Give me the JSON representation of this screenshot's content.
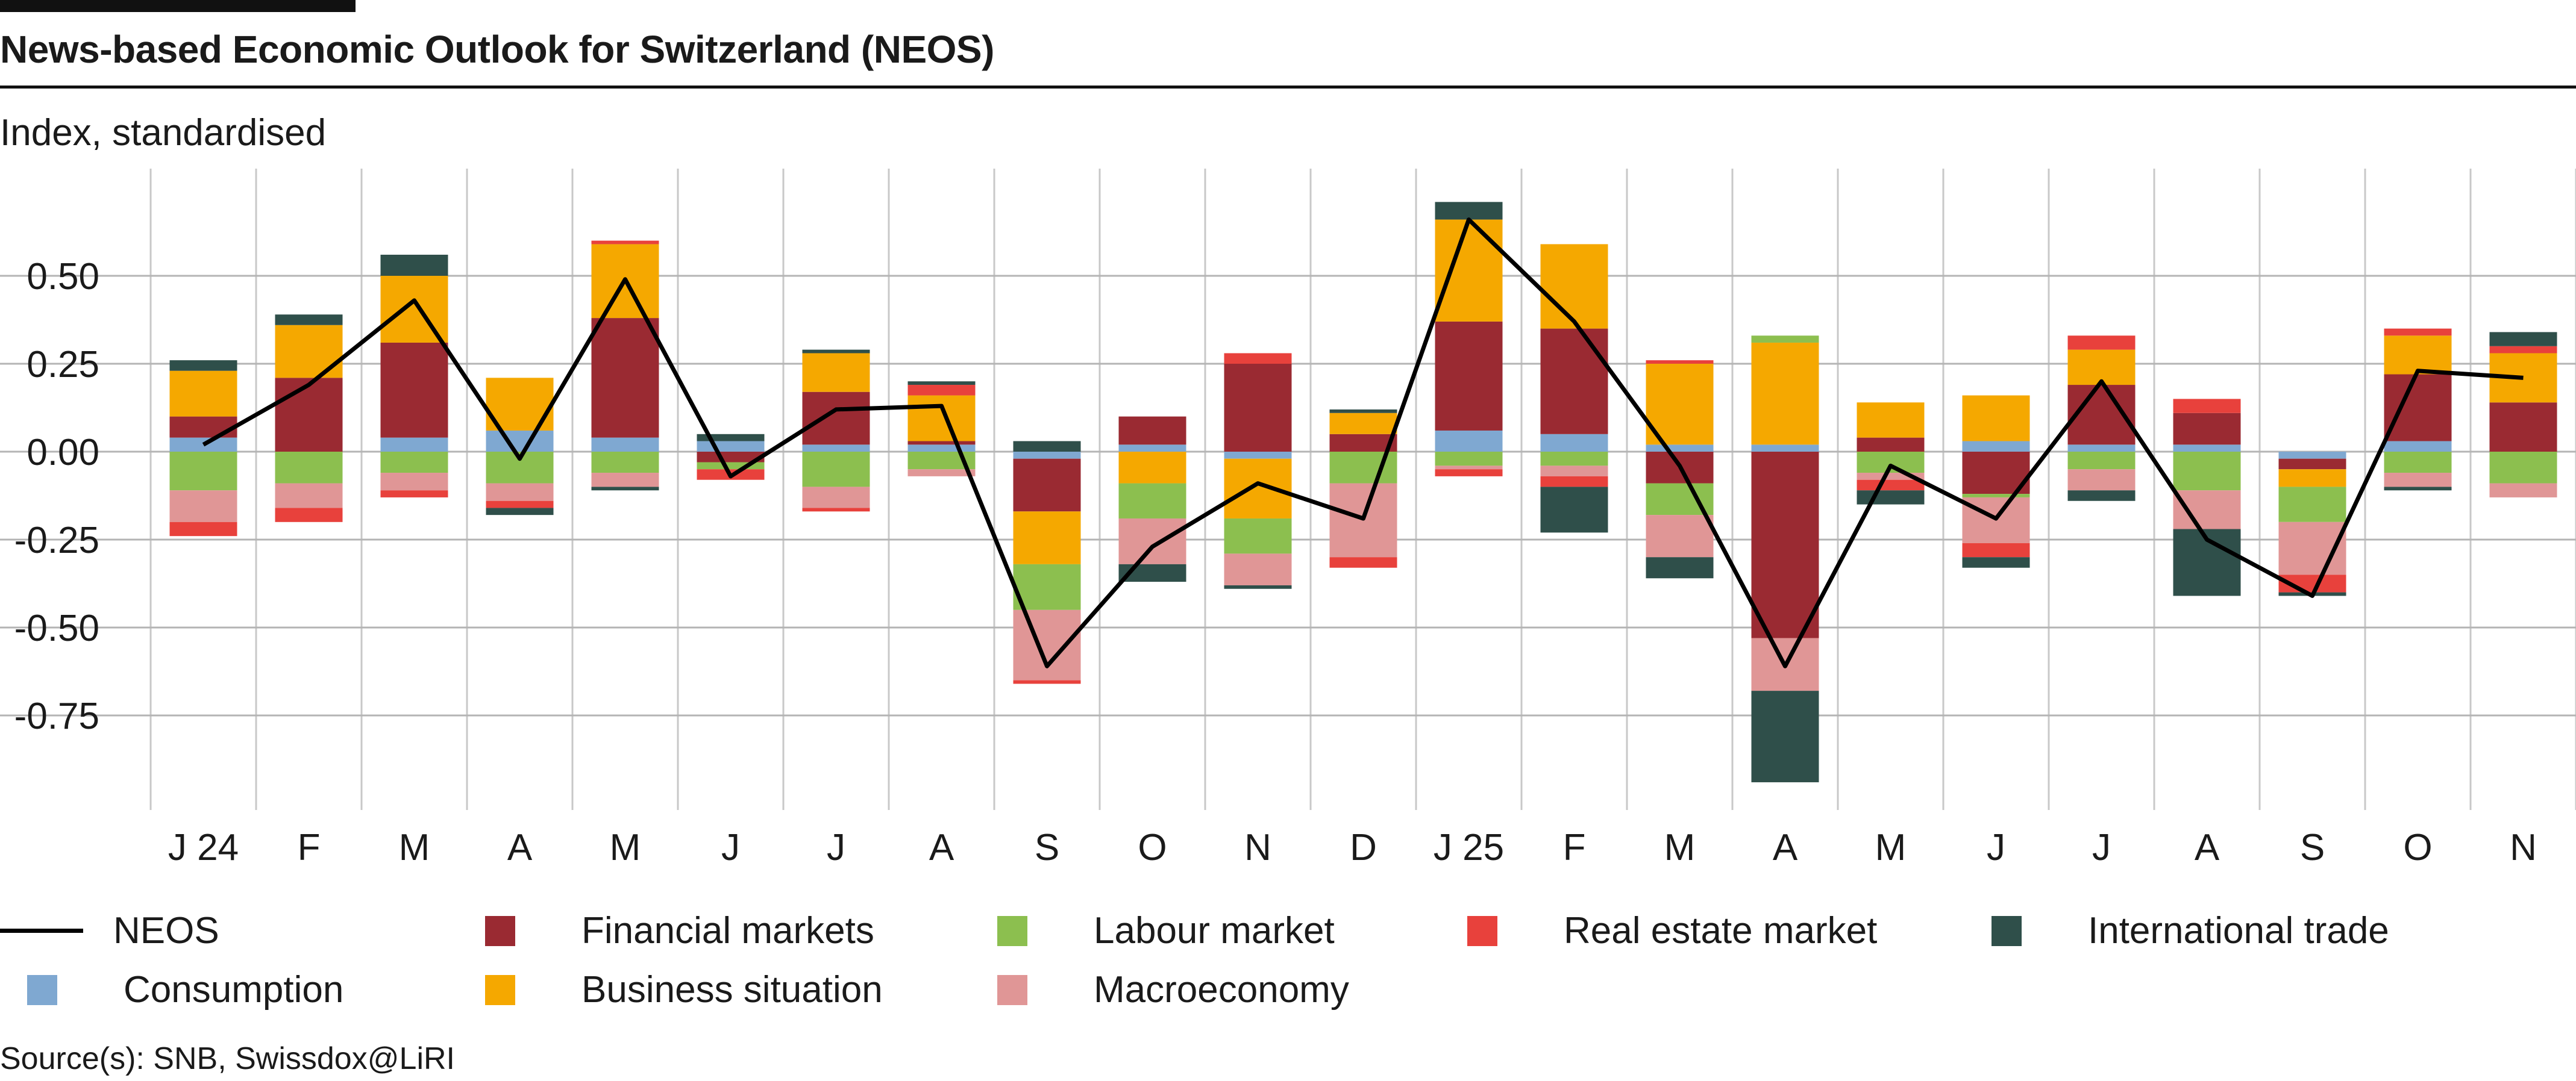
{
  "title": "News-based Economic Outlook for Switzerland (NEOS)",
  "subtitle": "Index, standardised",
  "source": "Source(s): SNB, Swissdox@LiRI",
  "chart_data": {
    "type": "bar",
    "stacked": true,
    "title": "News-based Economic Outlook for Switzerland (NEOS)",
    "ylabel": "Index, standardised",
    "ylim": [
      -1.0,
      0.82
    ],
    "yticks": [
      0.5,
      0.25,
      0.0,
      -0.25,
      -0.5,
      -0.75
    ],
    "ytick_labels": [
      "0.50",
      "0.25",
      "0.00",
      "-0.25",
      "-0.50",
      "-0.75"
    ],
    "categories": [
      "J 24",
      "F",
      "M",
      "A",
      "M",
      "J",
      "J",
      "A",
      "S",
      "O",
      "N",
      "D",
      "J 25",
      "F",
      "M",
      "A",
      "M",
      "J",
      "J",
      "A",
      "S",
      "O",
      "N"
    ],
    "series": [
      {
        "name": "Consumption",
        "color": "#7fa8d1",
        "values": [
          0.04,
          0.0,
          0.04,
          0.06,
          0.04,
          0.03,
          0.02,
          0.02,
          -0.02,
          0.02,
          -0.02,
          0.0,
          0.06,
          0.05,
          0.02,
          0.02,
          0.0,
          0.03,
          0.02,
          0.02,
          -0.02,
          0.03,
          0.0
        ]
      },
      {
        "name": "Financial markets",
        "color": "#9a2a32",
        "values": [
          0.06,
          0.21,
          0.27,
          0.0,
          0.34,
          -0.03,
          0.15,
          0.01,
          -0.15,
          0.08,
          0.25,
          0.05,
          0.31,
          0.3,
          -0.09,
          -0.53,
          0.04,
          -0.12,
          0.17,
          0.09,
          -0.03,
          0.19,
          0.14
        ]
      },
      {
        "name": "Business situation",
        "color": "#f5a800",
        "values": [
          0.13,
          0.15,
          0.19,
          0.15,
          0.21,
          0.0,
          0.11,
          0.13,
          -0.15,
          -0.09,
          -0.17,
          0.06,
          0.29,
          0.24,
          0.23,
          0.29,
          0.1,
          0.13,
          0.1,
          0.0,
          -0.05,
          0.11,
          0.14
        ]
      },
      {
        "name": "Labour market",
        "color": "#8cbf4f",
        "values": [
          -0.11,
          -0.09,
          -0.06,
          -0.09,
          -0.06,
          -0.02,
          -0.1,
          -0.05,
          -0.13,
          -0.1,
          -0.1,
          -0.09,
          -0.04,
          -0.04,
          -0.09,
          0.02,
          -0.06,
          -0.01,
          -0.05,
          -0.11,
          -0.1,
          -0.06,
          -0.09
        ]
      },
      {
        "name": "Macroeconomy",
        "color": "#e09696",
        "values": [
          -0.09,
          -0.07,
          -0.05,
          -0.05,
          -0.04,
          0.0,
          -0.06,
          -0.02,
          -0.2,
          -0.13,
          -0.09,
          -0.21,
          -0.01,
          -0.03,
          -0.12,
          -0.15,
          -0.02,
          -0.13,
          -0.06,
          -0.11,
          -0.15,
          -0.04,
          -0.04
        ]
      },
      {
        "name": "Real estate market",
        "color": "#e8413c",
        "values": [
          -0.04,
          -0.04,
          -0.02,
          -0.02,
          0.01,
          -0.03,
          -0.01,
          0.03,
          -0.01,
          0.0,
          0.03,
          -0.03,
          -0.02,
          -0.03,
          0.01,
          0.0,
          -0.03,
          -0.04,
          0.04,
          0.04,
          -0.05,
          0.02,
          0.02
        ]
      },
      {
        "name": "International trade",
        "color": "#2f4f4a",
        "values": [
          0.03,
          0.03,
          0.06,
          -0.02,
          -0.01,
          0.02,
          0.01,
          0.01,
          0.03,
          -0.05,
          -0.01,
          0.01,
          0.05,
          -0.13,
          -0.06,
          -0.26,
          -0.04,
          -0.03,
          -0.03,
          -0.19,
          -0.01,
          -0.01,
          0.04
        ]
      }
    ],
    "line": {
      "name": "NEOS",
      "color": "#000000",
      "values": [
        0.02,
        0.19,
        0.43,
        -0.02,
        0.49,
        -0.07,
        0.12,
        0.13,
        -0.61,
        -0.27,
        -0.09,
        -0.19,
        0.66,
        0.37,
        -0.04,
        -0.61,
        -0.04,
        -0.19,
        0.2,
        -0.25,
        -0.41,
        0.23,
        0.21
      ]
    },
    "legend": [
      {
        "name": "NEOS",
        "kind": "line",
        "color": "#000000"
      },
      {
        "name": "Financial markets",
        "kind": "box",
        "color": "#9a2a32"
      },
      {
        "name": "Labour market",
        "kind": "box",
        "color": "#8cbf4f"
      },
      {
        "name": "Real estate market",
        "kind": "box",
        "color": "#e8413c"
      },
      {
        "name": "International trade",
        "kind": "box",
        "color": "#2f4f4a"
      },
      {
        "name": "Consumption",
        "kind": "box",
        "color": "#7fa8d1"
      },
      {
        "name": "Business situation",
        "kind": "box",
        "color": "#f5a800"
      },
      {
        "name": "Macroeconomy",
        "kind": "box",
        "color": "#e09696"
      }
    ],
    "legend_position": "bottom",
    "grid": true
  }
}
